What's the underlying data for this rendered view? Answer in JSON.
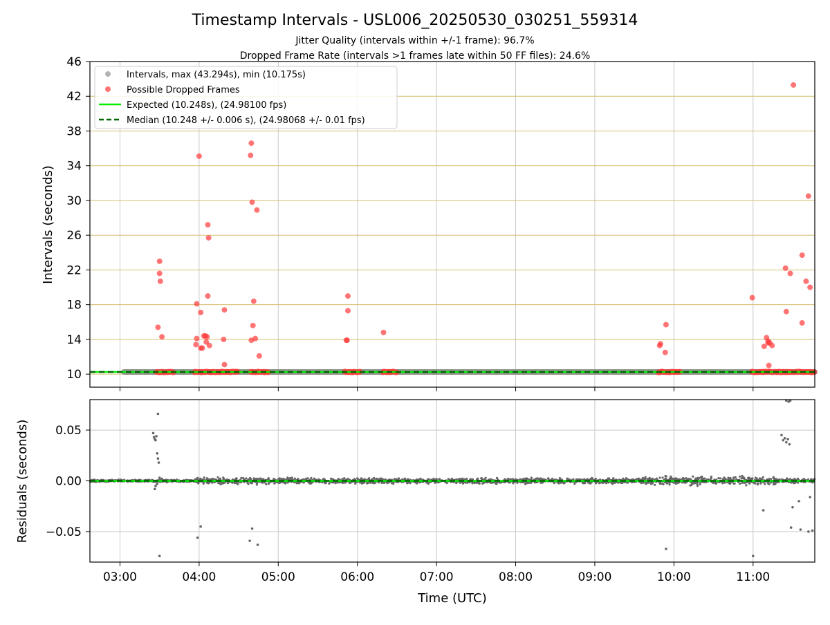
{
  "figure": {
    "title": "Timestamp Intervals - USL006_20250530_030251_559314",
    "subtitle_1": "Jitter Quality (intervals within +/-1 frame): 96.7%",
    "subtitle_2": "Dropped Frame Rate (intervals >1 frames late within 50 FF files): 24.6%"
  },
  "colors": {
    "intervals": "#808080",
    "dropped": "#ff3b3b",
    "expected": "#00ee00",
    "median": "#006400",
    "hgrid_top": "#d4bd6e",
    "grid": "#c8c8c8",
    "residuals": "#666666"
  },
  "chart_data": [
    {
      "type": "scatter",
      "xlabel": "",
      "ylabel": "Intervals (seconds)",
      "xlim_hours": [
        2.62,
        11.78
      ],
      "ylim": [
        8.5,
        46
      ],
      "yticks": [
        "10",
        "14",
        "18",
        "22",
        "26",
        "30",
        "34",
        "38",
        "42",
        "46"
      ],
      "ytick_values": [
        10,
        14,
        18,
        22,
        26,
        30,
        34,
        38,
        42,
        46
      ],
      "grid": "on",
      "legend_position": "upper-left",
      "legend": [
        "Intervals, max (43.294s), min (10.175s)",
        "Possible Dropped Frames",
        "Expected (10.248s), (24.98100 fps)",
        "Median (10.248 +/- 0.006 s), (24.98068 +/- 0.01 fps)"
      ],
      "series": [
        {
          "name": "Intervals, max (43.294s), min (10.175s)",
          "x_range_hours": [
            3.05,
            11.78
          ],
          "y": 10.248
        },
        {
          "name": "Possible Dropped Frames",
          "clusters_y10": [
            [
              3.46,
              3.68
            ],
            [
              3.94,
              4.5
            ],
            [
              4.65,
              4.88
            ],
            [
              5.84,
              6.04
            ],
            [
              6.32,
              6.5
            ],
            [
              9.8,
              10.08
            ],
            [
              10.98,
              11.78
            ]
          ],
          "points": [
            [
              3.5,
              23.0
            ],
            [
              3.5,
              21.6
            ],
            [
              3.51,
              20.7
            ],
            [
              3.48,
              15.4
            ],
            [
              3.53,
              14.3
            ],
            [
              4.0,
              35.1
            ],
            [
              3.97,
              18.1
            ],
            [
              4.02,
              17.1
            ],
            [
              3.97,
              14.1
            ],
            [
              3.96,
              13.4
            ],
            [
              4.02,
              13.0
            ],
            [
              4.04,
              13.0
            ],
            [
              4.06,
              14.4
            ],
            [
              4.08,
              14.4
            ],
            [
              4.1,
              14.3
            ],
            [
              4.09,
              13.7
            ],
            [
              4.13,
              13.3
            ],
            [
              4.11,
              27.2
            ],
            [
              4.12,
              25.7
            ],
            [
              4.11,
              19.0
            ],
            [
              4.32,
              17.4
            ],
            [
              4.31,
              14.0
            ],
            [
              4.32,
              11.1
            ],
            [
              4.65,
              35.2
            ],
            [
              4.66,
              36.6
            ],
            [
              4.67,
              29.8
            ],
            [
              4.73,
              28.9
            ],
            [
              4.69,
              18.4
            ],
            [
              4.68,
              15.6
            ],
            [
              4.71,
              14.1
            ],
            [
              4.66,
              13.9
            ],
            [
              4.76,
              12.1
            ],
            [
              5.86,
              13.9
            ],
            [
              5.87,
              13.9
            ],
            [
              5.88,
              19.0
            ],
            [
              5.88,
              17.3
            ],
            [
              6.33,
              14.8
            ],
            [
              9.82,
              13.3
            ],
            [
              9.83,
              13.5
            ],
            [
              9.89,
              12.5
            ],
            [
              9.9,
              15.7
            ],
            [
              10.99,
              18.8
            ],
            [
              11.14,
              13.2
            ],
            [
              11.17,
              14.2
            ],
            [
              11.19,
              13.8
            ],
            [
              11.21,
              13.6
            ],
            [
              11.19,
              13.6
            ],
            [
              11.24,
              13.3
            ],
            [
              11.2,
              11.0
            ],
            [
              11.41,
              22.2
            ],
            [
              11.42,
              17.2
            ],
            [
              11.47,
              21.6
            ],
            [
              11.51,
              43.3
            ],
            [
              11.62,
              23.7
            ],
            [
              11.62,
              15.9
            ],
            [
              11.67,
              20.7
            ],
            [
              11.7,
              30.5
            ],
            [
              11.72,
              20.0
            ]
          ]
        },
        {
          "name": "Expected (10.248s), (24.98100 fps)",
          "y": 10.248
        },
        {
          "name": "Median (10.248 +/- 0.006 s), (24.98068 +/- 0.01 fps)",
          "y": 10.248
        }
      ]
    },
    {
      "type": "scatter",
      "xlabel": "Time (UTC)",
      "ylabel": "Residuals (seconds)",
      "xlim_hours": [
        2.62,
        11.78
      ],
      "xticks": [
        "03:00",
        "04:00",
        "05:00",
        "06:00",
        "07:00",
        "08:00",
        "09:00",
        "10:00",
        "11:00"
      ],
      "xtick_values_hours": [
        3,
        4,
        5,
        6,
        7,
        8,
        9,
        10,
        11
      ],
      "ylim": [
        -0.08,
        0.08
      ],
      "yticks": [
        "−0.05",
        "0.00",
        "0.05"
      ],
      "ytick_values": [
        -0.05,
        0.0,
        0.05
      ],
      "grid": "on",
      "series": [
        {
          "name": "",
          "dense_band": [
            {
              "x_range_hours": [
                2.62,
                3.95
              ],
              "spread": 0.0015
            },
            {
              "x_range_hours": [
                3.95,
                4.9
              ],
              "spread": 0.0045
            },
            {
              "x_range_hours": [
                4.9,
                9.6
              ],
              "spread": 0.0035
            },
            {
              "x_range_hours": [
                9.6,
                11.3
              ],
              "spread": 0.0055
            },
            {
              "x_range_hours": [
                11.3,
                11.78
              ],
              "spread": 0.003
            }
          ],
          "outliers": [
            [
              3.42,
              0.047
            ],
            [
              3.43,
              0.043
            ],
            [
              3.44,
              0.041
            ],
            [
              3.45,
              0.04
            ],
            [
              3.46,
              0.044
            ],
            [
              3.47,
              0.027
            ],
            [
              3.48,
              0.022
            ],
            [
              3.49,
              0.018
            ],
            [
              3.48,
              0.066
            ],
            [
              3.5,
              -0.074
            ],
            [
              3.44,
              -0.008
            ],
            [
              3.45,
              -0.005
            ],
            [
              3.47,
              -0.003
            ],
            [
              3.5,
              0.003
            ],
            [
              3.53,
              0.002
            ],
            [
              3.98,
              -0.056
            ],
            [
              4.02,
              -0.045
            ],
            [
              4.64,
              -0.059
            ],
            [
              4.67,
              -0.047
            ],
            [
              4.74,
              -0.063
            ],
            [
              9.9,
              -0.067
            ],
            [
              11.0,
              -0.074
            ],
            [
              11.13,
              -0.029
            ],
            [
              11.36,
              0.045
            ],
            [
              11.38,
              0.04
            ],
            [
              11.4,
              0.042
            ],
            [
              11.42,
              0.038
            ],
            [
              11.44,
              0.041
            ],
            [
              11.46,
              0.036
            ],
            [
              11.42,
              0.079
            ],
            [
              11.45,
              0.078
            ],
            [
              11.47,
              0.079
            ],
            [
              11.5,
              -0.026
            ],
            [
              11.48,
              -0.046
            ],
            [
              11.58,
              -0.02
            ],
            [
              11.6,
              -0.048
            ],
            [
              11.7,
              -0.05
            ],
            [
              11.72,
              -0.016
            ],
            [
              11.75,
              -0.049
            ],
            [
              11.76,
              0.001
            ]
          ]
        },
        {
          "name": "Expected",
          "y": 0.0
        },
        {
          "name": "Median",
          "y": 0.0
        }
      ]
    }
  ]
}
